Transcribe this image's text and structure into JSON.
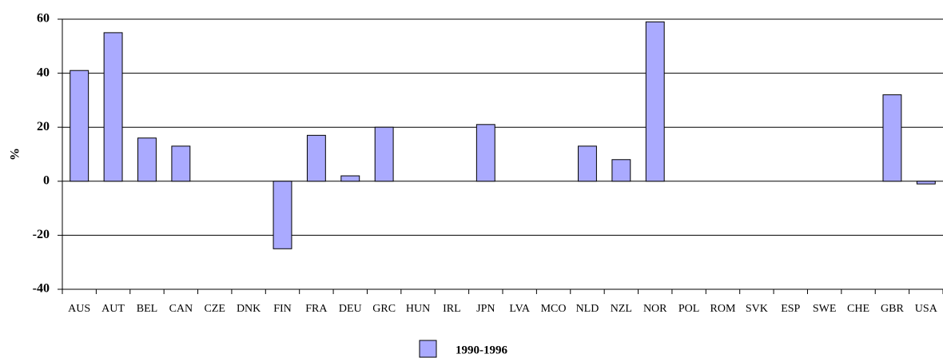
{
  "chart_data": {
    "type": "bar",
    "y_label": "%",
    "categories": [
      "AUS",
      "AUT",
      "BEL",
      "CAN",
      "CZE",
      "DNK",
      "FIN",
      "FRA",
      "DEU",
      "GRC",
      "HUN",
      "IRL",
      "JPN",
      "LVA",
      "MCO",
      "NLD",
      "NZL",
      "NOR",
      "POL",
      "ROM",
      "SVK",
      "ESP",
      "SWE",
      "CHE",
      "GBR",
      "USA"
    ],
    "series": [
      {
        "name": "1990-1996",
        "color": "#aaaaff",
        "values": [
          41,
          55,
          16,
          13,
          null,
          null,
          -25,
          17,
          2,
          20,
          null,
          null,
          21,
          null,
          null,
          13,
          8,
          59,
          null,
          null,
          null,
          null,
          null,
          null,
          32,
          -1
        ]
      }
    ],
    "ylim": [
      -40,
      60
    ],
    "yticks": [
      -40,
      -20,
      0,
      20,
      40,
      60
    ],
    "grid": true
  }
}
